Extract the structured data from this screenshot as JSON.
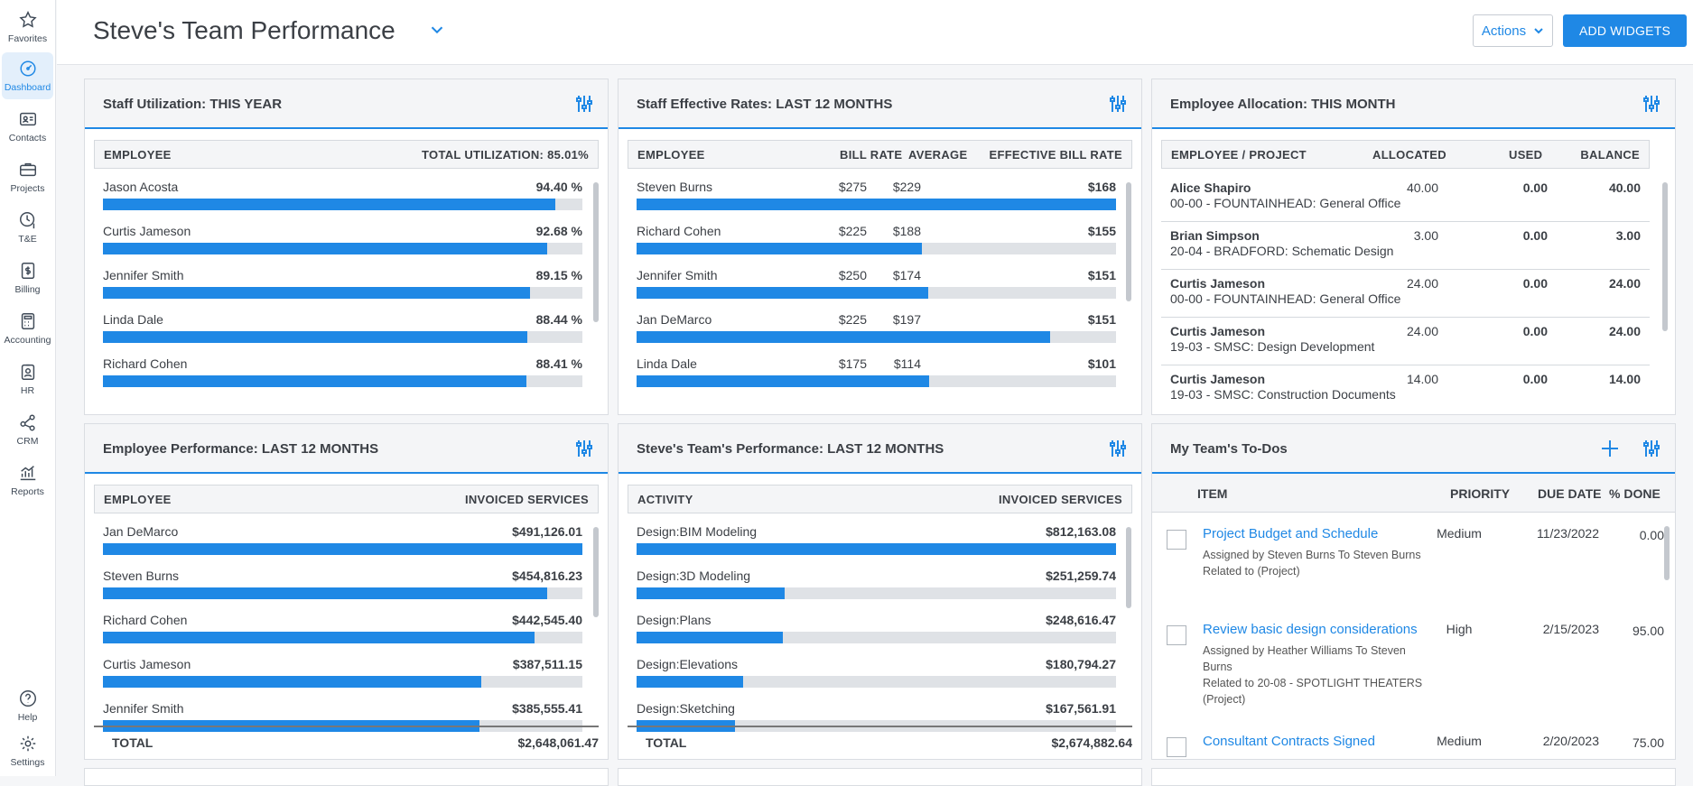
{
  "sidebar": {
    "items": [
      {
        "label": "Favorites",
        "icon": "star-icon"
      },
      {
        "label": "Dashboard",
        "icon": "gauge-icon",
        "active": true
      },
      {
        "label": "Contacts",
        "icon": "contact-card-icon"
      },
      {
        "label": "Projects",
        "icon": "briefcase-icon"
      },
      {
        "label": "T&E",
        "icon": "clock-dollar-icon"
      },
      {
        "label": "Billing",
        "icon": "invoice-icon"
      },
      {
        "label": "Accounting",
        "icon": "calculator-icon"
      },
      {
        "label": "HR",
        "icon": "badge-icon"
      },
      {
        "label": "CRM",
        "icon": "network-icon"
      },
      {
        "label": "Reports",
        "icon": "chart-icon"
      },
      {
        "label": "Help",
        "icon": "help-icon"
      },
      {
        "label": "Settings",
        "icon": "gear-icon"
      }
    ]
  },
  "header": {
    "title": "Steve's Team Performance",
    "actions_label": "Actions",
    "add_widgets_label": "ADD WIDGETS"
  },
  "colors": {
    "accent": "#1f88e5",
    "track": "#dfe2e6"
  },
  "staff_util": {
    "title": "Staff Utilization: THIS YEAR",
    "col_employee": "EMPLOYEE",
    "col_total": "TOTAL UTILIZATION: 85.01%",
    "rows": [
      {
        "name": "Jason Acosta",
        "value": "94.40 %",
        "fill": 0.944
      },
      {
        "name": "Curtis Jameson",
        "value": "92.68 %",
        "fill": 0.9268
      },
      {
        "name": "Jennifer Smith",
        "value": "89.15 %",
        "fill": 0.8915
      },
      {
        "name": "Linda Dale",
        "value": "88.44 %",
        "fill": 0.8844
      },
      {
        "name": "Richard Cohen",
        "value": "88.41 %",
        "fill": 0.8841
      }
    ]
  },
  "rates": {
    "title": "Staff Effective Rates: LAST 12 MONTHS",
    "col_employee": "EMPLOYEE",
    "col_bill": "BILL RATE",
    "col_avg": "AVERAGE",
    "col_eff": "EFFECTIVE BILL RATE",
    "rows": [
      {
        "name": "Steven Burns",
        "bill": "$275",
        "avg": "$229",
        "eff": "$168",
        "fill": 1.0
      },
      {
        "name": "Richard Cohen",
        "bill": "$225",
        "avg": "$188",
        "eff": "$155",
        "fill": 0.595
      },
      {
        "name": "Jennifer Smith",
        "bill": "$250",
        "avg": "$174",
        "eff": "$151",
        "fill": 0.609
      },
      {
        "name": "Jan DeMarco",
        "bill": "$225",
        "avg": "$197",
        "eff": "$151",
        "fill": 0.862
      },
      {
        "name": "Linda Dale",
        "bill": "$175",
        "avg": "$114",
        "eff": "$101",
        "fill": 0.611
      }
    ]
  },
  "alloc": {
    "title": "Employee Allocation: THIS MONTH",
    "col_emp": "EMPLOYEE / PROJECT",
    "col_alloc": "ALLOCATED",
    "col_used": "USED",
    "col_bal": "BALANCE",
    "rows": [
      {
        "emp": "Alice Shapiro",
        "proj": "00-00 - FOUNTAINHEAD: General Office",
        "allocated": "40.00",
        "used": "0.00",
        "balance": "40.00"
      },
      {
        "emp": "Brian Simpson",
        "proj": "20-04 - BRADFORD: Schematic Design",
        "allocated": "3.00",
        "used": "0.00",
        "balance": "3.00"
      },
      {
        "emp": "Curtis Jameson",
        "proj": "00-00 - FOUNTAINHEAD: General Office",
        "allocated": "24.00",
        "used": "0.00",
        "balance": "24.00"
      },
      {
        "emp": "Curtis Jameson",
        "proj": "19-03 - SMSC: Design Development",
        "allocated": "24.00",
        "used": "0.00",
        "balance": "24.00"
      },
      {
        "emp": "Curtis Jameson",
        "proj": "19-03 - SMSC: Construction Documents",
        "allocated": "14.00",
        "used": "0.00",
        "balance": "14.00"
      }
    ]
  },
  "emp_perf": {
    "title": "Employee Performance: LAST 12 MONTHS",
    "col_employee": "EMPLOYEE",
    "col_inv": "INVOICED SERVICES",
    "total_label": "TOTAL",
    "total_value": "$2,648,061.47",
    "rows": [
      {
        "name": "Jan DeMarco",
        "value": "$491,126.01",
        "fill": 1.0
      },
      {
        "name": "Steven Burns",
        "value": "$454,816.23",
        "fill": 0.926
      },
      {
        "name": "Richard Cohen",
        "value": "$442,545.40",
        "fill": 0.901
      },
      {
        "name": "Curtis Jameson",
        "value": "$387,511.15",
        "fill": 0.789
      },
      {
        "name": "Jennifer Smith",
        "value": "$385,555.41",
        "fill": 0.785
      }
    ]
  },
  "team_perf": {
    "title": "Steve's Team's Performance: LAST 12 MONTHS",
    "col_activity": "ACTIVITY",
    "col_inv": "INVOICED SERVICES",
    "total_label": "TOTAL",
    "total_value": "$2,674,882.64",
    "rows": [
      {
        "name": "Design:BIM Modeling",
        "value": "$812,163.08",
        "fill": 1.0
      },
      {
        "name": "Design:3D Modeling",
        "value": "$251,259.74",
        "fill": 0.309
      },
      {
        "name": "Design:Plans",
        "value": "$248,616.47",
        "fill": 0.306
      },
      {
        "name": "Design:Elevations",
        "value": "$180,794.27",
        "fill": 0.223
      },
      {
        "name": "Design:Sketching",
        "value": "$167,561.91",
        "fill": 0.206
      }
    ]
  },
  "todos": {
    "title": "My Team's To-Dos",
    "col_item": "ITEM",
    "col_priority": "PRIORITY",
    "col_due": "DUE DATE",
    "col_done": "% DONE",
    "rows": [
      {
        "title": "Project Budget and Schedule",
        "desc1": "Assigned by Steven Burns To Steven Burns",
        "desc2": "Related to (Project)",
        "priority": "Medium",
        "due": "11/23/2022",
        "done": "0.00"
      },
      {
        "title": "Review basic design considerations",
        "desc1": "Assigned by Heather Williams To Steven Burns",
        "desc2": "Related to 20-08 - SPOTLIGHT THEATERS (Project)",
        "priority": "High",
        "due": "2/15/2023",
        "done": "95.00"
      },
      {
        "title": "Consultant Contracts Signed",
        "desc1": "",
        "desc2": "",
        "priority": "Medium",
        "due": "2/20/2023",
        "done": "75.00"
      }
    ]
  }
}
